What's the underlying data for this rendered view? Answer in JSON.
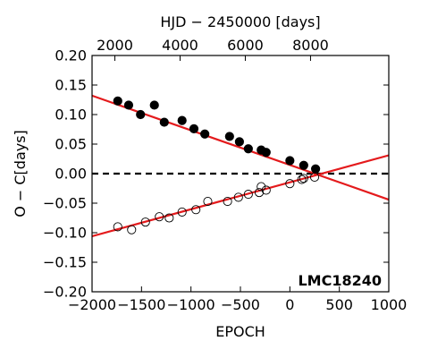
{
  "chart_data": {
    "type": "scatter",
    "title": "",
    "xlabel": "EPOCH",
    "ylabel": "O − C[days]",
    "top_xlabel": "HJD − 2450000 [days]",
    "annotation": "LMC18240",
    "xlim": [
      -2000,
      1000
    ],
    "ylim": [
      -0.2,
      0.2
    ],
    "top_xlim": [
      1300,
      10400
    ],
    "x_ticks": [
      -2000,
      -1500,
      -1000,
      -500,
      0,
      500,
      1000
    ],
    "x_tick_labels": [
      "−2000",
      "−1500",
      "−1000",
      "−500",
      "0",
      "500",
      "1000"
    ],
    "y_ticks": [
      -0.2,
      -0.15,
      -0.1,
      -0.05,
      0,
      0.05,
      0.1,
      0.15,
      0.2
    ],
    "y_tick_labels": [
      "−0.20",
      "−0.15",
      "−0.10",
      "−0.05",
      "0.00",
      "0.05",
      "0.10",
      "0.15",
      "0.20"
    ],
    "top_ticks": [
      2000,
      4000,
      6000,
      8000
    ],
    "top_tick_labels": [
      "2000",
      "4000",
      "6000",
      "8000"
    ],
    "grid": false,
    "colors": {
      "fit_line": "#e41a1c",
      "zero_line": "#000000",
      "filled_marker": "#000000",
      "open_marker": "#000000"
    },
    "series": [
      {
        "marker": "filled",
        "x": [
          -1740,
          -1630,
          -1510,
          -1370,
          -1270,
          -1090,
          -970,
          -860,
          -610,
          -510,
          -420,
          -290,
          -240,
          0,
          140,
          260
        ],
        "y": [
          0.123,
          0.116,
          0.1,
          0.116,
          0.087,
          0.09,
          0.076,
          0.067,
          0.063,
          0.054,
          0.042,
          0.04,
          0.036,
          0.022,
          0.014,
          0.008
        ]
      },
      {
        "marker": "open",
        "x": [
          -1740,
          -1600,
          -1460,
          -1320,
          -1220,
          -1090,
          -950,
          -830,
          -630,
          -520,
          -420,
          -310,
          -290,
          -240,
          0,
          120,
          140,
          250
        ],
        "y": [
          -0.09,
          -0.095,
          -0.082,
          -0.073,
          -0.075,
          -0.065,
          -0.061,
          -0.047,
          -0.047,
          -0.04,
          -0.035,
          -0.032,
          -0.022,
          -0.028,
          -0.017,
          -0.01,
          -0.008,
          -0.006
        ]
      }
    ],
    "fits": [
      {
        "x": [
          -2000,
          1000
        ],
        "y": [
          0.132,
          -0.044
        ]
      },
      {
        "x": [
          -2000,
          1000
        ],
        "y": [
          -0.106,
          0.031
        ]
      }
    ],
    "reference_line": {
      "y": 0,
      "style": "dashed"
    }
  }
}
